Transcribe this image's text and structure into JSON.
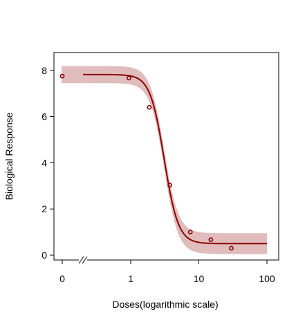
{
  "chart_data": {
    "type": "line",
    "xlabel": "Doses(logarithmic scale)",
    "ylabel": "Biological Response",
    "x_scale": "log",
    "xlim": [
      0.1,
      100
    ],
    "ylim": [
      0,
      8
    ],
    "x_ticks": [
      {
        "value": 0,
        "label": "0"
      },
      {
        "value": 1,
        "label": "1"
      },
      {
        "value": 10,
        "label": "10"
      },
      {
        "value": 100,
        "label": "100"
      }
    ],
    "y_ticks": [
      0,
      2,
      4,
      6,
      8
    ],
    "axis_break": true,
    "grid": false,
    "observed_points": [
      {
        "x": 0,
        "y": 7.75
      },
      {
        "x": 0.94,
        "y": 7.67
      },
      {
        "x": 1.875,
        "y": 6.4
      },
      {
        "x": 3.75,
        "y": 3.03
      },
      {
        "x": 7.5,
        "y": 1.0
      },
      {
        "x": 15,
        "y": 0.67
      },
      {
        "x": 30,
        "y": 0.3
      }
    ],
    "fitted_curve": {
      "model": "log-logistic",
      "upper": 7.82,
      "lower": 0.5,
      "ed50": 3.1,
      "slope": 4.2,
      "x_range": [
        0.2,
        100
      ]
    },
    "confidence_band": {
      "half_width_at_upper": 0.37,
      "half_width_at_lower": 0.45,
      "half_width_mid": 0.3
    },
    "colors": {
      "curve": "#8b0000",
      "band": "#e0bcbc",
      "points": "#8b0000"
    }
  }
}
